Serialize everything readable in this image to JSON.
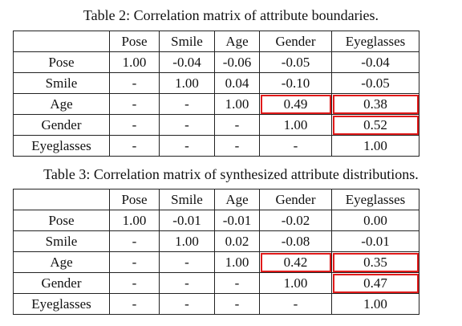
{
  "table2": {
    "caption": "Table 2: Correlation matrix of attribute boundaries.",
    "headers": [
      "",
      "Pose",
      "Smile",
      "Age",
      "Gender",
      "Eyeglasses"
    ],
    "rows": [
      {
        "label": "Pose",
        "cells": [
          "1.00",
          "-0.04",
          "-0.06",
          "-0.05",
          "-0.04"
        ]
      },
      {
        "label": "Smile",
        "cells": [
          "-",
          "1.00",
          "0.04",
          "-0.10",
          "-0.05"
        ]
      },
      {
        "label": "Age",
        "cells": [
          "-",
          "-",
          "1.00",
          "0.49",
          "0.38"
        ]
      },
      {
        "label": "Gender",
        "cells": [
          "-",
          "-",
          "-",
          "1.00",
          "0.52"
        ]
      },
      {
        "label": "Eyeglasses",
        "cells": [
          "-",
          "-",
          "-",
          "-",
          "1.00"
        ]
      }
    ]
  },
  "table3": {
    "caption": "Table 3: Correlation matrix of synthesized attribute distributions.",
    "headers": [
      "",
      "Pose",
      "Smile",
      "Age",
      "Gender",
      "Eyeglasses"
    ],
    "rows": [
      {
        "label": "Pose",
        "cells": [
          "1.00",
          "-0.01",
          "-0.01",
          "-0.02",
          "0.00"
        ]
      },
      {
        "label": "Smile",
        "cells": [
          "-",
          "1.00",
          "0.02",
          "-0.08",
          "-0.01"
        ]
      },
      {
        "label": "Age",
        "cells": [
          "-",
          "-",
          "1.00",
          "0.42",
          "0.35"
        ]
      },
      {
        "label": "Gender",
        "cells": [
          "-",
          "-",
          "-",
          "1.00",
          "0.47"
        ]
      },
      {
        "label": "Eyeglasses",
        "cells": [
          "-",
          "-",
          "-",
          "-",
          "1.00"
        ]
      }
    ]
  },
  "highlight_color": "#e11b1b"
}
